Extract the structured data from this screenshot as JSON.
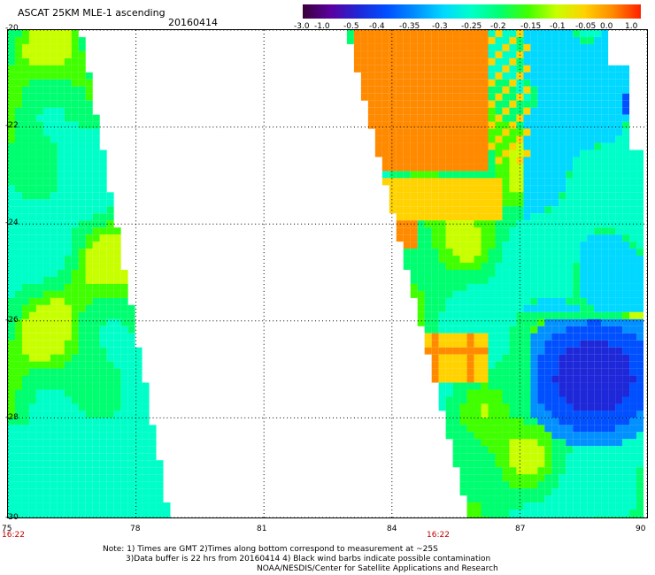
{
  "header": {
    "title": "ASCAT 25KM MLE-1 ascending",
    "date": "20160414"
  },
  "colorbar": {
    "ticks": [
      "-3.0",
      "-1.0",
      "-0.5",
      "-0.4",
      "-0.35",
      "-0.3",
      "-0.25",
      "-0.2",
      "-0.15",
      "-0.1",
      "-0.05",
      "0.0",
      "1.0"
    ],
    "colors": [
      "#3a003a",
      "#5a00a0",
      "#1e28d8",
      "#0050ff",
      "#0090ff",
      "#00d8ff",
      "#00ffc8",
      "#00ff70",
      "#40ff00",
      "#c8ff00",
      "#ffd200",
      "#ff8a00",
      "#ff2000"
    ]
  },
  "map": {
    "y_axis_labels": [
      "-20",
      "-22",
      "-24",
      "-26",
      "-28",
      "-30"
    ],
    "x_axis_labels": [
      "75",
      "78",
      "81",
      "84",
      "87",
      "90"
    ],
    "time_labels": [
      "16:22",
      "16:22"
    ],
    "grid": "dotted"
  },
  "notes": {
    "line1": "Note: 1) Times are GMT 2)Times along bottom correspond to measurement at ~25S",
    "line2": "3)Data buffer is 22 hrs from 20160414 4) Black wind barbs indicate possible contamination",
    "line3": "NOAA/NESDIS/Center for Satellite Applications and Research"
  }
}
